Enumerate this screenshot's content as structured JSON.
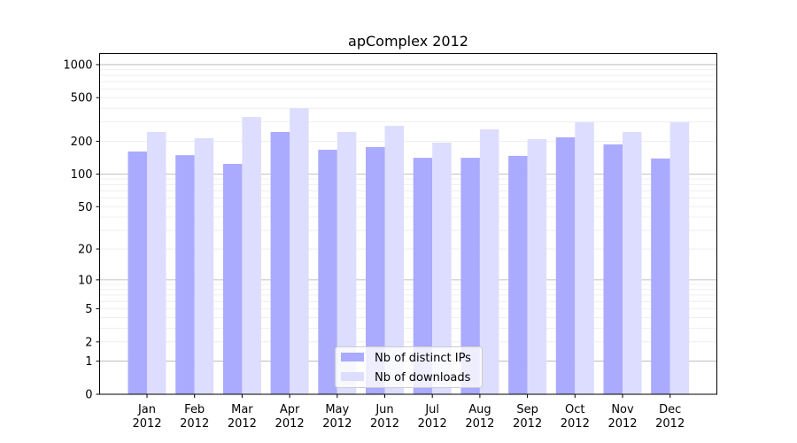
{
  "chart_data": {
    "type": "bar",
    "title": "apComplex 2012",
    "xlabel": "",
    "ylabel": "",
    "yscale": "log(1+y)",
    "ylim": [
      0,
      1270
    ],
    "yticks": [
      0,
      1,
      2,
      5,
      10,
      20,
      50,
      100,
      200,
      500,
      1000
    ],
    "grid": true,
    "legend_position": "bottom-center",
    "categories": [
      "Jan\n2012",
      "Feb\n2012",
      "Mar\n2012",
      "Apr\n2012",
      "May\n2012",
      "Jun\n2012",
      "Jul\n2012",
      "Aug\n2012",
      "Sep\n2012",
      "Oct\n2012",
      "Nov\n2012",
      "Dec\n2012"
    ],
    "series": [
      {
        "name": "Nb of distinct IPs",
        "color": "#aaaaff",
        "values": [
          161,
          149,
          124,
          243,
          167,
          177,
          141,
          141,
          147,
          217,
          187,
          139
        ]
      },
      {
        "name": "Nb of downloads",
        "color": "#ddddff",
        "values": [
          243,
          213,
          333,
          401,
          243,
          277,
          194,
          257,
          209,
          298,
          243,
          298
        ]
      }
    ]
  }
}
